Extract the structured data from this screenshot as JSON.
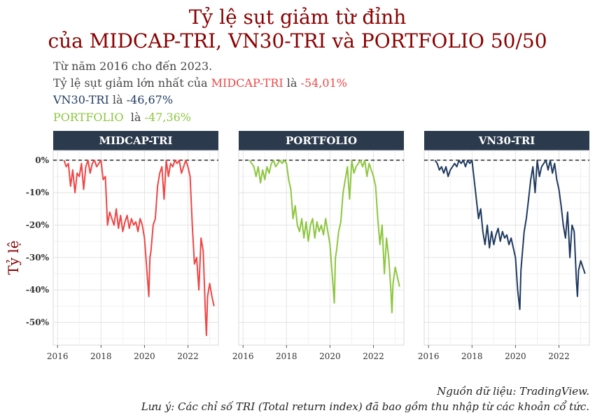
{
  "title_line1": "Tỷ lệ sụt giảm từ đỉnh",
  "title_line2": "của MIDCAP-TRI, VN30-TRI và PORTFOLIO 50/50",
  "subtitle": {
    "line1": "Từ năm 2016 cho đến 2023.",
    "line2_prefix": "Tỷ lệ sụt giảm lớn nhất của ",
    "line2_name": "MIDCAP-TRI",
    "line2_mid": " là ",
    "line2_value": "-54,01%",
    "line3_name": "VN30-TRI",
    "line3_mid": " là ",
    "line3_value": "-46,67%",
    "line4_name": "PORTFOLIO",
    "line4_mid": "  là ",
    "line4_value": "-47,36%"
  },
  "caption": {
    "source": "Nguồn dữ liệu: TradingView.",
    "note": "Lưu ý: Các chỉ số TRI (Total return index) đã bao gồm thu nhập từ các khoản cổ tức."
  },
  "colors": {
    "title": "#8b0000",
    "midcap": "#f04545",
    "vn30": "#1f3a5f",
    "portfolio": "#8dc63f",
    "strip": "#2b3a4d"
  },
  "chart_data": {
    "type": "line",
    "ylabel": "Tỷ lệ",
    "xlabel": "",
    "ylim": [
      -57,
      3
    ],
    "xlim": [
      2015.8,
      2023.4
    ],
    "yticks": [
      0,
      -10,
      -20,
      -30,
      -40,
      -50
    ],
    "ytick_labels": [
      "0%",
      "-10%",
      "-20%",
      "-30%",
      "-40%",
      "-50%"
    ],
    "xticks": [
      2016,
      2018,
      2020,
      2022
    ],
    "xtick_labels": [
      "2016",
      "2018",
      "2020",
      "2022"
    ],
    "reference_line": 0,
    "grid": true,
    "panels": [
      "MIDCAP-TRI",
      "PORTFOLIO",
      "VN30-TRI"
    ],
    "series": [
      {
        "name": "MIDCAP-TRI",
        "color": "#f04545",
        "x": [
          2016.3,
          2016.4,
          2016.5,
          2016.6,
          2016.7,
          2016.8,
          2016.9,
          2017.0,
          2017.1,
          2017.2,
          2017.3,
          2017.4,
          2017.5,
          2017.6,
          2017.7,
          2017.8,
          2017.9,
          2018.0,
          2018.1,
          2018.2,
          2018.3,
          2018.4,
          2018.5,
          2018.6,
          2018.7,
          2018.8,
          2018.9,
          2019.0,
          2019.1,
          2019.2,
          2019.3,
          2019.4,
          2019.5,
          2019.6,
          2019.7,
          2019.8,
          2019.9,
          2020.0,
          2020.1,
          2020.2,
          2020.25,
          2020.3,
          2020.4,
          2020.5,
          2020.6,
          2020.7,
          2020.8,
          2020.9,
          2021.0,
          2021.1,
          2021.2,
          2021.3,
          2021.4,
          2021.5,
          2021.6,
          2021.7,
          2021.8,
          2021.9,
          2022.0,
          2022.1,
          2022.2,
          2022.3,
          2022.4,
          2022.5,
          2022.6,
          2022.7,
          2022.8,
          2022.85,
          2022.9,
          2023.0,
          2023.1,
          2023.2
        ],
        "values": [
          0,
          -2,
          -1,
          -8,
          -3,
          -10,
          -4,
          -5,
          -1,
          -9,
          -2,
          0,
          -4,
          -1,
          0,
          -2,
          -1,
          0,
          -6,
          -5,
          -20,
          -16,
          -18,
          -20,
          -15,
          -21,
          -17,
          -22,
          -19,
          -17,
          -21,
          -18,
          -20,
          -19,
          -22,
          -18,
          -20,
          -24,
          -33,
          -42,
          -30,
          -28,
          -20,
          -18,
          -8,
          -4,
          -2,
          -12,
          0,
          -5,
          -1,
          -2,
          0,
          -1,
          0,
          -4,
          -2,
          0,
          -2,
          -5,
          -20,
          -32,
          -30,
          -40,
          -24,
          -28,
          -47,
          -54,
          -42,
          -38,
          -42,
          -45
        ]
      },
      {
        "name": "PORTFOLIO",
        "color": "#8dc63f",
        "x": [
          2016.3,
          2016.4,
          2016.5,
          2016.6,
          2016.7,
          2016.8,
          2016.9,
          2017.0,
          2017.1,
          2017.2,
          2017.3,
          2017.4,
          2017.5,
          2017.6,
          2017.7,
          2017.8,
          2017.9,
          2018.0,
          2018.1,
          2018.2,
          2018.3,
          2018.4,
          2018.5,
          2018.6,
          2018.7,
          2018.8,
          2018.9,
          2019.0,
          2019.1,
          2019.2,
          2019.3,
          2019.4,
          2019.5,
          2019.6,
          2019.7,
          2019.8,
          2019.9,
          2020.0,
          2020.1,
          2020.2,
          2020.25,
          2020.3,
          2020.4,
          2020.5,
          2020.6,
          2020.7,
          2020.8,
          2020.9,
          2021.0,
          2021.1,
          2021.2,
          2021.3,
          2021.4,
          2021.5,
          2021.6,
          2021.7,
          2021.8,
          2021.9,
          2022.0,
          2022.1,
          2022.2,
          2022.3,
          2022.4,
          2022.5,
          2022.6,
          2022.7,
          2022.8,
          2022.85,
          2022.9,
          2023.0,
          2023.1,
          2023.2
        ],
        "values": [
          0,
          -1,
          -2,
          -5,
          -2,
          -7,
          -3,
          -6,
          -2,
          -4,
          -1,
          0,
          -2,
          -1,
          0,
          -1,
          0,
          -1,
          -6,
          -9,
          -18,
          -14,
          -20,
          -22,
          -18,
          -24,
          -19,
          -25,
          -20,
          -18,
          -24,
          -19,
          -22,
          -20,
          -23,
          -18,
          -22,
          -26,
          -35,
          -44,
          -30,
          -28,
          -22,
          -19,
          -10,
          -6,
          -2,
          -12,
          0,
          -4,
          -2,
          -1,
          0,
          -2,
          0,
          -5,
          -1,
          -3,
          -5,
          -8,
          -18,
          -26,
          -20,
          -35,
          -24,
          -30,
          -40,
          -47,
          -38,
          -33,
          -36,
          -39
        ]
      },
      {
        "name": "VN30-TRI",
        "color": "#1f3a5f",
        "x": [
          2016.3,
          2016.4,
          2016.5,
          2016.6,
          2016.7,
          2016.8,
          2016.9,
          2017.0,
          2017.1,
          2017.2,
          2017.3,
          2017.4,
          2017.5,
          2017.6,
          2017.7,
          2017.8,
          2017.9,
          2018.0,
          2018.1,
          2018.2,
          2018.3,
          2018.4,
          2018.5,
          2018.6,
          2018.7,
          2018.8,
          2018.9,
          2019.0,
          2019.1,
          2019.2,
          2019.3,
          2019.4,
          2019.5,
          2019.6,
          2019.7,
          2019.8,
          2019.9,
          2020.0,
          2020.1,
          2020.2,
          2020.25,
          2020.3,
          2020.4,
          2020.5,
          2020.6,
          2020.7,
          2020.8,
          2020.9,
          2021.0,
          2021.1,
          2021.2,
          2021.3,
          2021.4,
          2021.5,
          2021.6,
          2021.7,
          2021.8,
          2021.9,
          2022.0,
          2022.1,
          2022.2,
          2022.3,
          2022.4,
          2022.5,
          2022.6,
          2022.7,
          2022.8,
          2022.85,
          2022.9,
          2023.0,
          2023.1,
          2023.2
        ],
        "values": [
          0,
          -1,
          -3,
          -2,
          -4,
          -2,
          -5,
          -3,
          -2,
          -1,
          -2,
          0,
          -1,
          0,
          -2,
          0,
          -1,
          0,
          -6,
          -12,
          -18,
          -15,
          -22,
          -26,
          -20,
          -27,
          -22,
          -26,
          -23,
          -21,
          -25,
          -22,
          -24,
          -23,
          -26,
          -24,
          -27,
          -30,
          -40,
          -46,
          -34,
          -30,
          -22,
          -18,
          -12,
          -6,
          -2,
          -10,
          0,
          -5,
          -2,
          -1,
          0,
          -3,
          0,
          -4,
          -1,
          -6,
          -9,
          -14,
          -20,
          -24,
          -16,
          -30,
          -20,
          -22,
          -37,
          -42,
          -34,
          -31,
          -33,
          -35
        ]
      }
    ]
  }
}
